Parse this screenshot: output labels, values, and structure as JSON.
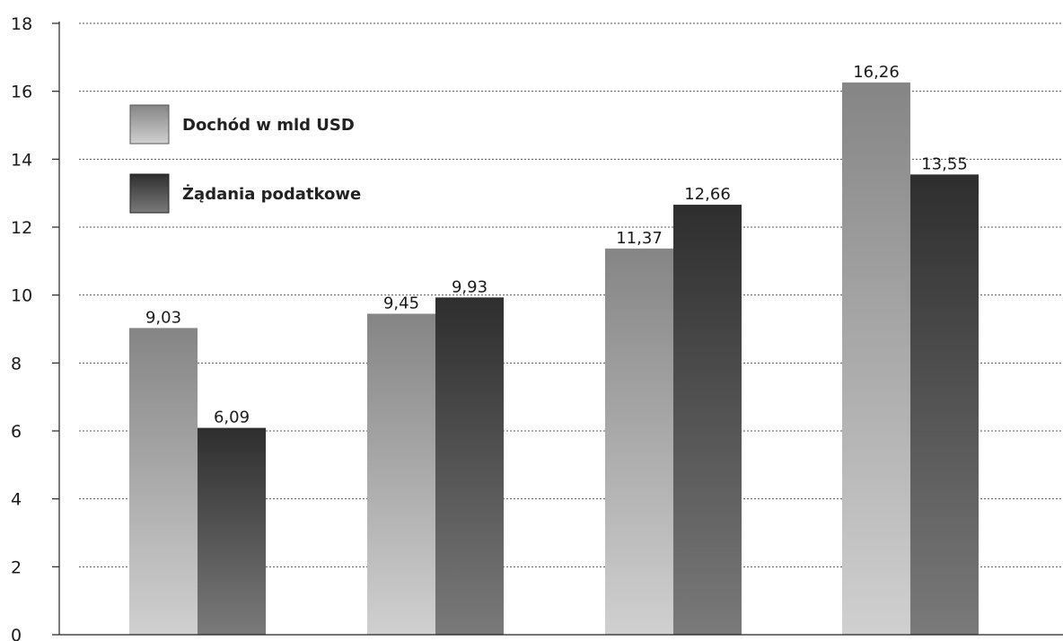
{
  "chart_data": {
    "type": "bar",
    "categories": [
      "",
      "",
      "",
      ""
    ],
    "series": [
      {
        "name": "Dochód w mld USD",
        "values": [
          9.03,
          9.45,
          11.37,
          16.26
        ],
        "color": "#8a8a8a"
      },
      {
        "name": "Żądania podatkowe",
        "values": [
          6.09,
          9.93,
          12.66,
          13.55
        ],
        "color": "#333333"
      }
    ],
    "data_labels": [
      [
        "9,03",
        "9,45",
        "11,37",
        "16,26"
      ],
      [
        "6,09",
        "9,93",
        "12,66",
        "13,55"
      ]
    ],
    "title": "",
    "xlabel": "",
    "ylabel": "",
    "ylim": [
      0,
      18
    ],
    "yticks": [
      "0",
      "2",
      "4",
      "6",
      "8",
      "10",
      "12",
      "14",
      "16",
      "18"
    ],
    "grid": "horizontal-dotted",
    "legend": "top-left"
  }
}
